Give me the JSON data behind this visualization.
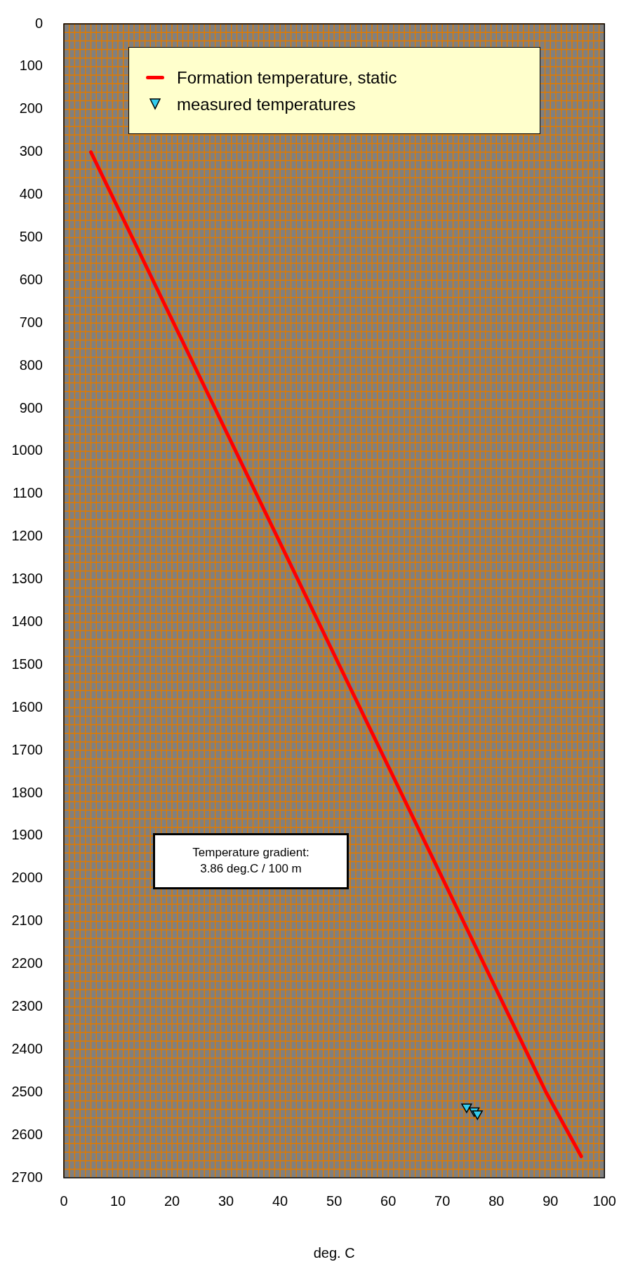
{
  "chart_data": {
    "type": "line",
    "xlabel": "deg. C",
    "xlim": [
      0,
      100
    ],
    "xticks": [
      0,
      10,
      20,
      30,
      40,
      50,
      60,
      70,
      80,
      90,
      100
    ],
    "ylim": [
      2700,
      0
    ],
    "yticks": [
      0,
      100,
      200,
      300,
      400,
      500,
      600,
      700,
      800,
      900,
      1000,
      1100,
      1200,
      1300,
      1400,
      1500,
      1600,
      1700,
      1800,
      1900,
      2000,
      2100,
      2200,
      2300,
      2400,
      2500,
      2600,
      2700
    ],
    "grid": true,
    "legend": "top",
    "annotations": [
      "Temperature gradient:\n3.86 deg.C / 100 m"
    ],
    "series": [
      {
        "name": "Formation temperature, static",
        "color": "#ff0000",
        "x": [
          5,
          89.2,
          95.7
        ],
        "values": [
          300,
          2500,
          2650
        ],
        "marker": "none",
        "line_style": "solid"
      },
      {
        "name": "measured temperatures",
        "type": "scatter",
        "color": "#33ccee",
        "x": [
          74.5,
          75.9,
          76.5
        ],
        "values": [
          2534,
          2543,
          2550
        ],
        "marker": "triangle"
      }
    ]
  }
}
